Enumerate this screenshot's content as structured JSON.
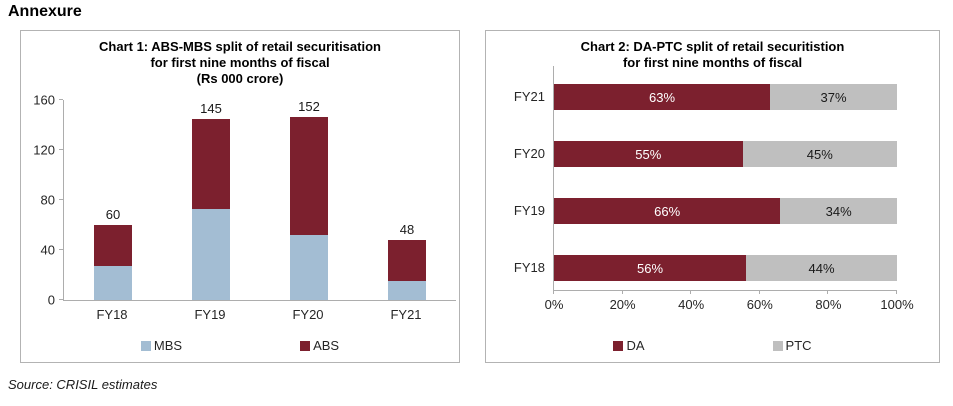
{
  "page": {
    "heading": "Annexure",
    "source_note": "Source: CRISIL estimates"
  },
  "colors": {
    "abs_da_red": "#7c202e",
    "mbs_blue": "#a3bdd3",
    "ptc_gray": "#bfbfbf"
  },
  "chart_data": [
    {
      "id": "chart1",
      "type": "bar",
      "stacked": true,
      "orientation": "vertical",
      "title_lines": [
        "Chart 1: ABS-MBS split of retail securitisation",
        "for first nine months of fiscal",
        "(Rs 000 crore)"
      ],
      "categories": [
        "FY18",
        "FY19",
        "FY20",
        "FY21"
      ],
      "series": [
        {
          "name": "MBS",
          "color_key": "mbs_blue",
          "values": [
            27,
            73,
            54,
            15
          ]
        },
        {
          "name": "ABS",
          "color_key": "abs_da_red",
          "values": [
            33,
            72,
            98,
            33
          ]
        }
      ],
      "totals": [
        60,
        145,
        152,
        48
      ],
      "ylim": [
        0,
        160
      ],
      "yticks": [
        0,
        40,
        80,
        120,
        160
      ],
      "grid": false,
      "legend_position": "bottom"
    },
    {
      "id": "chart2",
      "type": "bar",
      "stacked": true,
      "orientation": "horizontal",
      "unit": "%",
      "title_lines": [
        "Chart 2: DA-PTC split of retail securitistion",
        "for first nine months of fiscal"
      ],
      "categories": [
        "FY21",
        "FY20",
        "FY19",
        "FY18"
      ],
      "series": [
        {
          "name": "DA",
          "color_key": "abs_da_red",
          "label_color": "#ffffff",
          "values": [
            63,
            55,
            66,
            56
          ]
        },
        {
          "name": "PTC",
          "color_key": "ptc_gray",
          "label_color": "#1a1a1a",
          "values": [
            37,
            45,
            34,
            44
          ]
        }
      ],
      "xlim": [
        0,
        100
      ],
      "xticks": [
        "0%",
        "20%",
        "40%",
        "60%",
        "80%",
        "100%"
      ],
      "grid": false,
      "legend_position": "bottom"
    }
  ]
}
